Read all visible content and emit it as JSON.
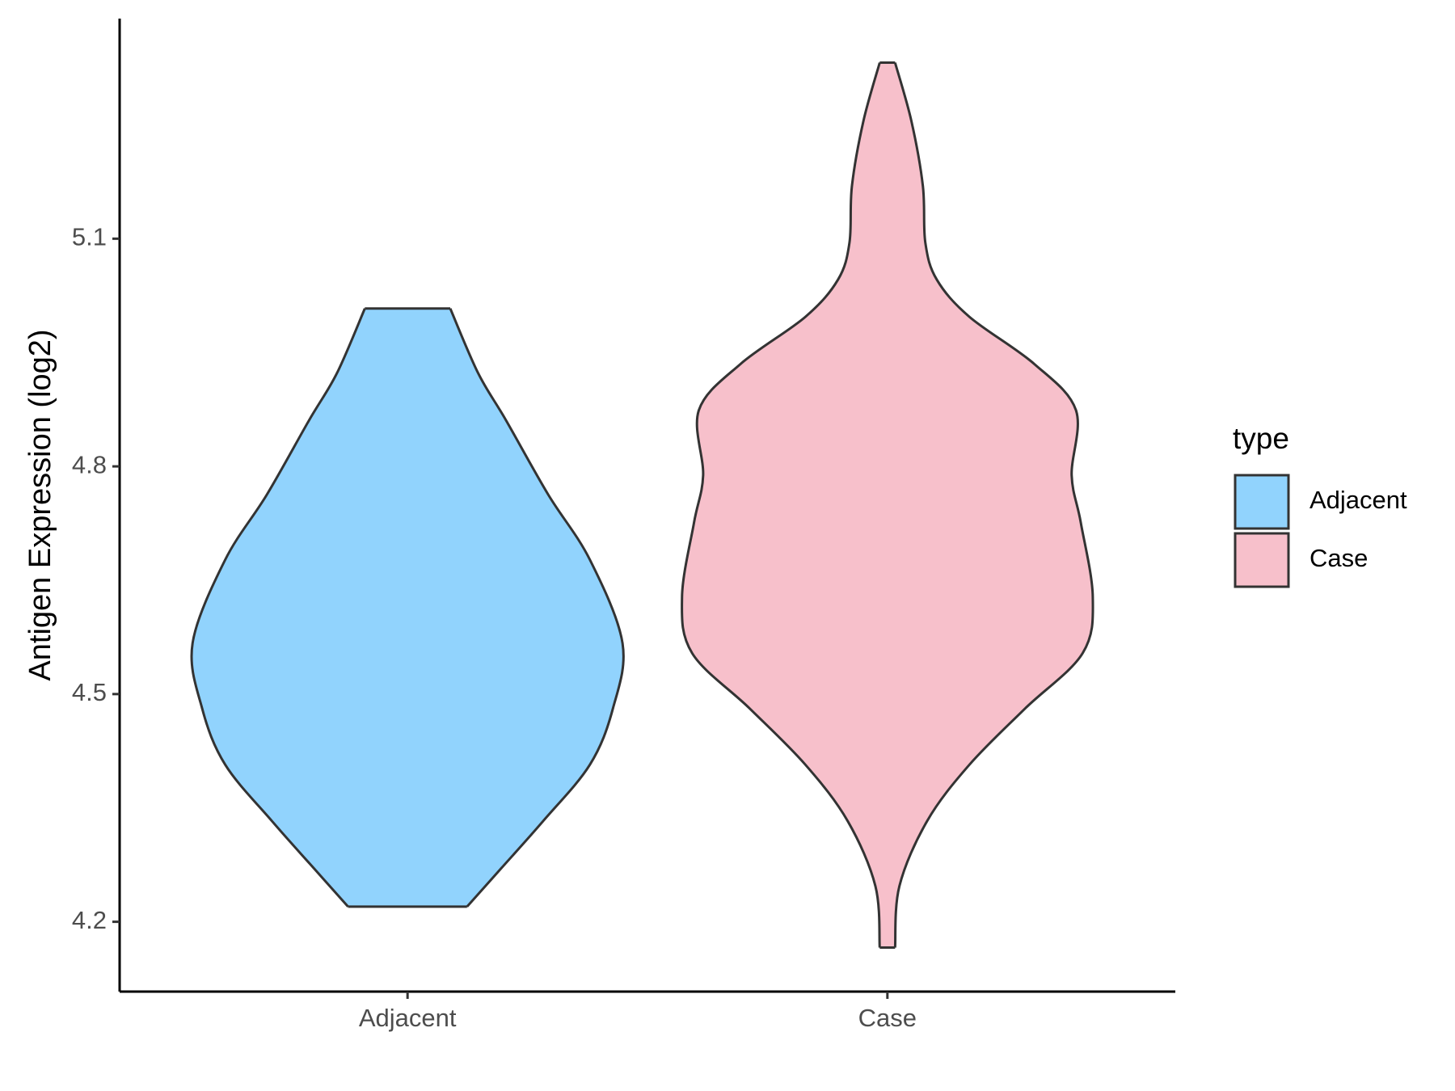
{
  "chart_data": {
    "type": "violin",
    "y_label": "Antigen Expression (log2)",
    "categories": [
      "Adjacent",
      "Case"
    ],
    "legend_title": "type",
    "ylim": [
      4.108,
      5.39
    ],
    "yticks": [
      4.2,
      4.5,
      4.8,
      5.1
    ],
    "series": [
      {
        "name": "Adjacent",
        "color": "#91d3fd",
        "y": [
          5.008,
          4.923,
          4.861,
          4.763,
          4.677,
          4.567,
          4.481,
          4.407,
          4.333,
          4.271,
          4.22
        ],
        "half_width": [
          0.089,
          0.147,
          0.205,
          0.293,
          0.38,
          0.448,
          0.428,
          0.38,
          0.283,
          0.196,
          0.124
        ]
      },
      {
        "name": "Case",
        "color": "#f7c0cb",
        "y": [
          5.332,
          5.255,
          5.169,
          5.095,
          5.046,
          4.997,
          4.935,
          4.874,
          4.788,
          4.726,
          4.628,
          4.554,
          4.481,
          4.407,
          4.333,
          4.247,
          4.166
        ],
        "half_width": [
          0.016,
          0.05,
          0.074,
          0.079,
          0.103,
          0.171,
          0.306,
          0.393,
          0.384,
          0.403,
          0.428,
          0.407,
          0.287,
          0.171,
          0.083,
          0.025,
          0.016
        ]
      }
    ]
  }
}
